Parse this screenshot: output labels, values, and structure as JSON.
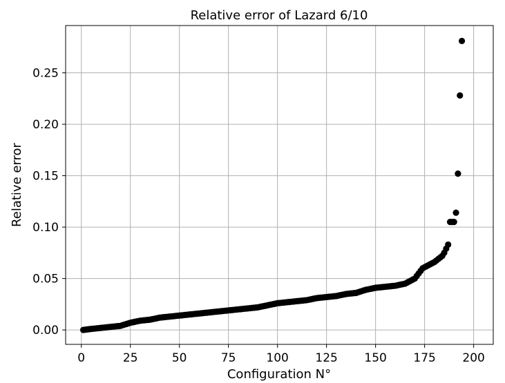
{
  "chart_data": {
    "type": "scatter",
    "title": "Relative error of Lazard 6/10",
    "xlabel": "Configuration N°",
    "ylabel": "Relative error",
    "xlim": [
      -8,
      210
    ],
    "ylim": [
      -0.014,
      0.296
    ],
    "x_ticks": [
      0,
      25,
      50,
      75,
      100,
      125,
      150,
      175,
      200
    ],
    "x_tick_labels": [
      "0",
      "25",
      "50",
      "75",
      "100",
      "125",
      "150",
      "175",
      "200"
    ],
    "y_ticks": [
      0.0,
      0.05,
      0.1,
      0.15,
      0.2,
      0.25
    ],
    "y_tick_labels": [
      "0.00",
      "0.05",
      "0.10",
      "0.15",
      "0.20",
      "0.25"
    ],
    "grid": true,
    "marker_color": "#000000",
    "series": [
      {
        "curve_points": [
          [
            1,
            0.0
          ],
          [
            5,
            0.001
          ],
          [
            10,
            0.002
          ],
          [
            15,
            0.003
          ],
          [
            20,
            0.004
          ],
          [
            25,
            0.007
          ],
          [
            30,
            0.009
          ],
          [
            35,
            0.01
          ],
          [
            40,
            0.012
          ],
          [
            45,
            0.013
          ],
          [
            50,
            0.014
          ],
          [
            55,
            0.015
          ],
          [
            60,
            0.016
          ],
          [
            65,
            0.017
          ],
          [
            70,
            0.018
          ],
          [
            75,
            0.019
          ],
          [
            80,
            0.02
          ],
          [
            85,
            0.021
          ],
          [
            90,
            0.022
          ],
          [
            95,
            0.024
          ],
          [
            100,
            0.026
          ],
          [
            105,
            0.027
          ],
          [
            110,
            0.028
          ],
          [
            115,
            0.029
          ],
          [
            120,
            0.031
          ],
          [
            125,
            0.032
          ],
          [
            130,
            0.033
          ],
          [
            135,
            0.035
          ],
          [
            140,
            0.036
          ],
          [
            145,
            0.039
          ],
          [
            150,
            0.041
          ],
          [
            155,
            0.042
          ],
          [
            160,
            0.043
          ],
          [
            165,
            0.045
          ],
          [
            168,
            0.048
          ],
          [
            170,
            0.05
          ],
          [
            172,
            0.055
          ],
          [
            174,
            0.06
          ],
          [
            176,
            0.062
          ],
          [
            178,
            0.064
          ],
          [
            180,
            0.066
          ],
          [
            182,
            0.069
          ],
          [
            184,
            0.072
          ],
          [
            185,
            0.075
          ],
          [
            186,
            0.079
          ]
        ],
        "extra_points": [
          [
            187,
            0.083
          ],
          [
            188,
            0.105
          ],
          [
            189,
            0.105
          ],
          [
            190,
            0.105
          ],
          [
            191,
            0.114
          ],
          [
            192,
            0.152
          ],
          [
            193,
            0.228
          ],
          [
            194,
            0.281
          ]
        ]
      }
    ]
  }
}
